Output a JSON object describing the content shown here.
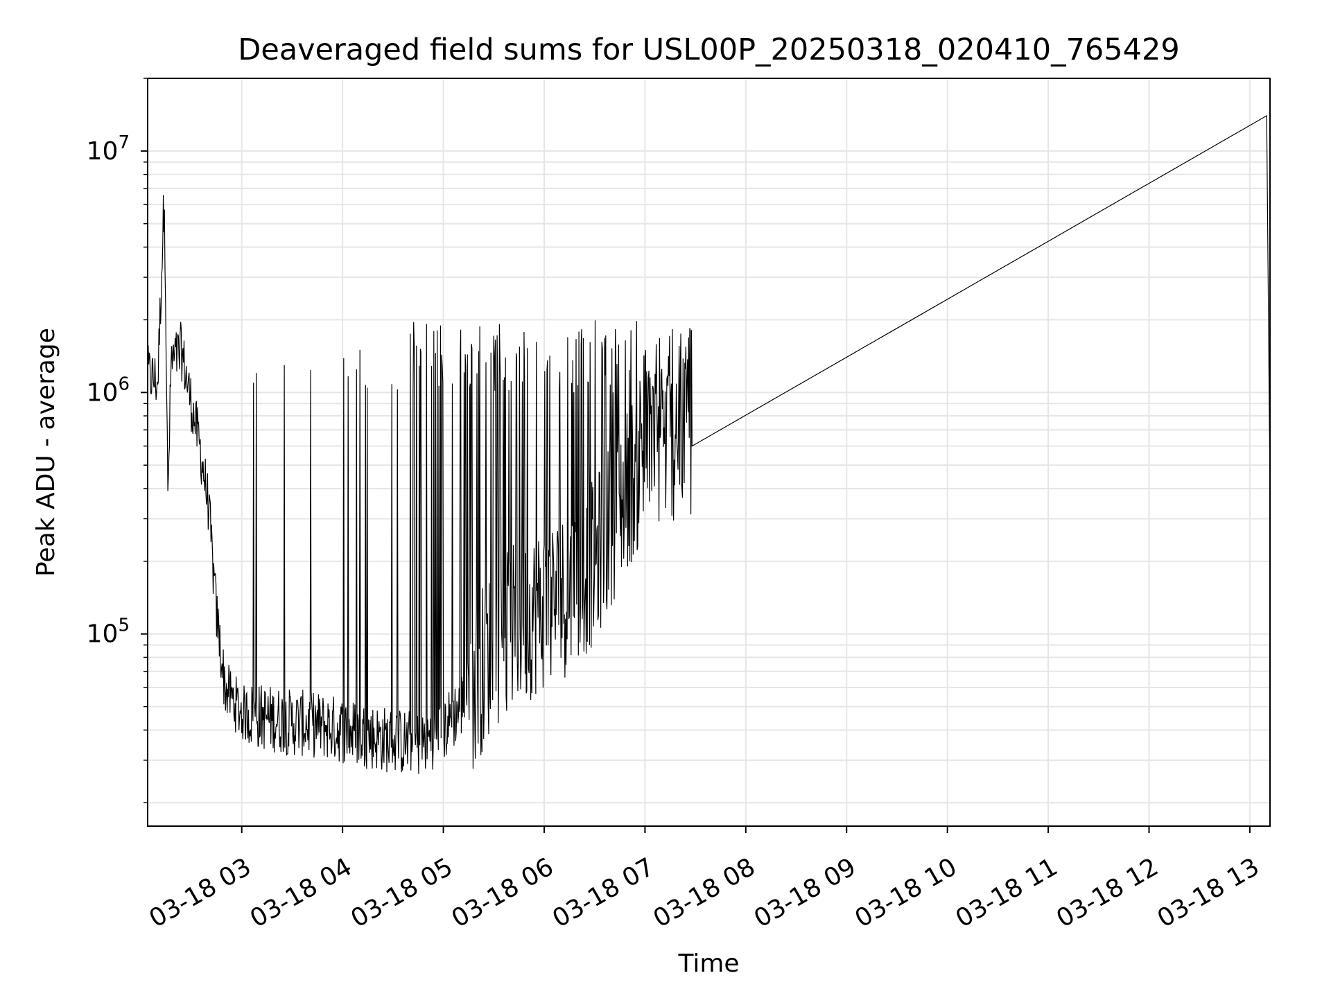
{
  "chart_data": {
    "type": "line",
    "title": "Deaveraged field sums for USL00P_20250318_020410_765429",
    "xlabel": "Time",
    "ylabel": "Peak ADU - average",
    "xscale": "time",
    "yscale": "log",
    "xlim": [
      "2025-03-18 02:04",
      "2025-03-18 13:12"
    ],
    "ylim": [
      16000,
      20000000
    ],
    "grid": true,
    "line_color": "#000000",
    "grid_color": "#e6e6e6",
    "x_tick_labels": [
      "03-18 03",
      "03-18 04",
      "03-18 05",
      "03-18 06",
      "03-18 07",
      "03-18 08",
      "03-18 09",
      "03-18 10",
      "03-18 11",
      "03-18 12",
      "03-18 13"
    ],
    "y_tick_labels": [
      {
        "base": "10",
        "exp": "5"
      },
      {
        "base": "10",
        "exp": "6"
      },
      {
        "base": "10",
        "exp": "7"
      }
    ],
    "series": [
      {
        "x": [
          "2025-03-18 02:04",
          "2025-03-18 02:10",
          "2025-03-18 02:14",
          "2025-03-18 02:16",
          "2025-03-18 02:18",
          "2025-03-18 02:24",
          "2025-03-18 02:30",
          "2025-03-18 02:35",
          "2025-03-18 02:40",
          "2025-03-18 02:45",
          "2025-03-18 02:50",
          "2025-03-18 03:00",
          "2025-03-18 03:15",
          "2025-03-18 03:30",
          "2025-03-18 03:45",
          "2025-03-18 04:00",
          "2025-03-18 04:15",
          "2025-03-18 04:30",
          "2025-03-18 04:45",
          "2025-03-18 05:00",
          "2025-03-18 05:10",
          "2025-03-18 05:20",
          "2025-03-18 05:30",
          "2025-03-18 05:45",
          "2025-03-18 06:00",
          "2025-03-18 06:15",
          "2025-03-18 06:30",
          "2025-03-18 06:45",
          "2025-03-18 07:00",
          "2025-03-18 07:15",
          "2025-03-18 07:28",
          "2025-03-18 13:10",
          "2025-03-18 13:12"
        ],
        "y": [
          1200000,
          1100000,
          7000000,
          350000,
          1300000,
          1500000,
          900000,
          600000,
          350000,
          120000,
          60000,
          47000,
          45000,
          43000,
          42000,
          40000,
          38000,
          36000,
          35000,
          40000,
          50000,
          65000,
          90000,
          110000,
          130000,
          150000,
          200000,
          350000,
          550000,
          650000,
          600000,
          14000000,
          400000
        ]
      }
    ]
  }
}
